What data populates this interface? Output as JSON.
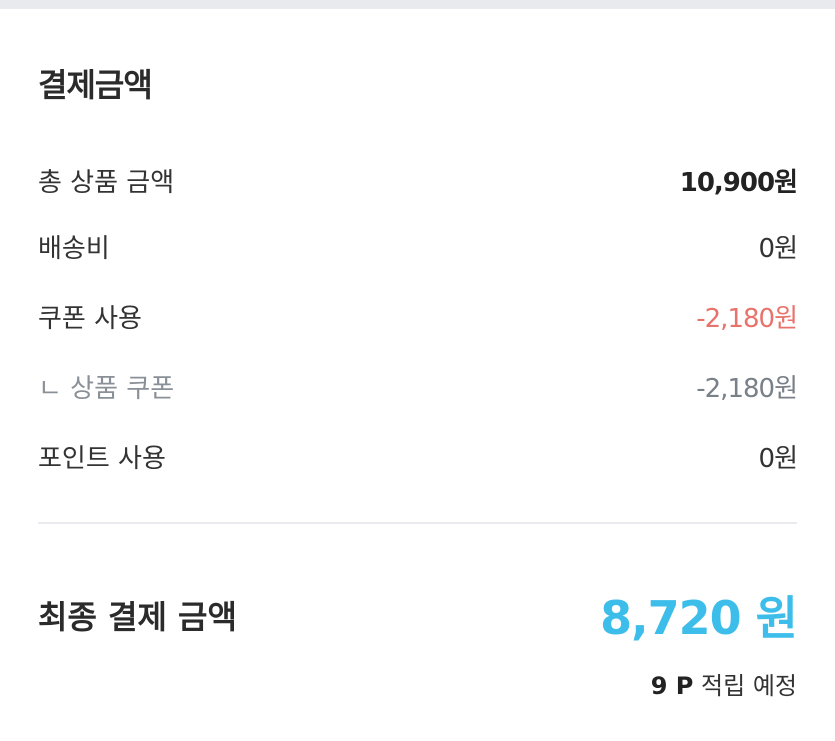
{
  "title": "결제금액",
  "rows": [
    {
      "label": "총 상품 금액",
      "value": "10,900원"
    },
    {
      "label": "배송비",
      "value": "0원"
    },
    {
      "label": "쿠폰 사용",
      "value": "-2,180원"
    },
    {
      "label": "ㄴ 상품 쿠폰",
      "value": "-2,180원"
    },
    {
      "label": "포인트 사용",
      "value": "0원"
    }
  ],
  "final": {
    "label": "최종 결제 금액",
    "value": "8,720 원"
  },
  "points": {
    "amount": "9 P",
    "label": "적립 예정"
  },
  "colors": {
    "accent": "#3dbde9",
    "discount": "#e8736c"
  }
}
